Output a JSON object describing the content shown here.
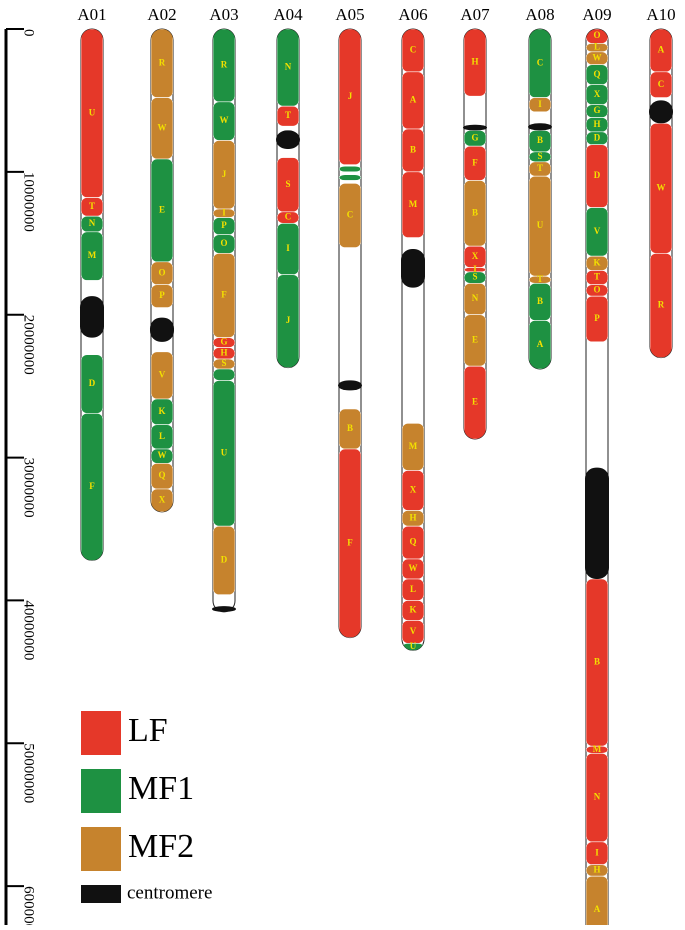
{
  "colors": {
    "LF": "#e53829",
    "MF1": "#1e9142",
    "MF2": "#c6832d",
    "centromere": "#111111",
    "label": "#f3e000",
    "gap": "#ffffff"
  },
  "chart_data": {
    "type": "chromosome_map",
    "axis": {
      "ticks": [
        0,
        10000000,
        20000000,
        30000000,
        40000000,
        50000000,
        60000000
      ],
      "tick_labels": [
        "0",
        "10000000",
        "20000000",
        "30000000",
        "40000000",
        "50000000",
        "60000000"
      ],
      "range": [
        0,
        63000000
      ]
    },
    "legend": [
      {
        "key": "LF",
        "label": "LF"
      },
      {
        "key": "MF1",
        "label": "MF1"
      },
      {
        "key": "MF2",
        "label": "MF2"
      },
      {
        "key": "centromere",
        "label": "centromere"
      }
    ],
    "chromosomes": [
      {
        "name": "A01",
        "length": 37200000,
        "blocks": [
          {
            "s": 0,
            "e": 11800000,
            "t": "LF",
            "l": "U"
          },
          {
            "s": 11800000,
            "e": 13100000,
            "t": "LF",
            "l": "T"
          },
          {
            "s": 13100000,
            "e": 14200000,
            "t": "MF1",
            "l": "N"
          },
          {
            "s": 14200000,
            "e": 17600000,
            "t": "MF1",
            "l": "M"
          },
          {
            "s": 18700000,
            "e": 21600000,
            "t": "centromere",
            "l": ""
          },
          {
            "s": 22800000,
            "e": 26900000,
            "t": "MF1",
            "l": "D"
          },
          {
            "s": 26900000,
            "e": 37200000,
            "t": "MF1",
            "l": "F"
          }
        ]
      },
      {
        "name": "A02",
        "length": 33800000,
        "blocks": [
          {
            "s": 0,
            "e": 4800000,
            "t": "MF2",
            "l": "R"
          },
          {
            "s": 4800000,
            "e": 9100000,
            "t": "MF2",
            "l": "W"
          },
          {
            "s": 9100000,
            "e": 16300000,
            "t": "MF1",
            "l": "E"
          },
          {
            "s": 16300000,
            "e": 17900000,
            "t": "MF2",
            "l": "O"
          },
          {
            "s": 17900000,
            "e": 19500000,
            "t": "MF2",
            "l": "P"
          },
          {
            "s": 20200000,
            "e": 21900000,
            "t": "centromere",
            "l": ""
          },
          {
            "s": 22600000,
            "e": 25900000,
            "t": "MF2",
            "l": "V"
          },
          {
            "s": 25900000,
            "e": 27700000,
            "t": "MF1",
            "l": "K"
          },
          {
            "s": 27700000,
            "e": 29400000,
            "t": "MF1",
            "l": "L"
          },
          {
            "s": 29400000,
            "e": 30400000,
            "t": "MF1",
            "l": "W"
          },
          {
            "s": 30400000,
            "e": 32200000,
            "t": "MF2",
            "l": "Q"
          },
          {
            "s": 32200000,
            "e": 33800000,
            "t": "MF2",
            "l": "X"
          }
        ]
      },
      {
        "name": "A03",
        "length": 40800000,
        "blocks": [
          {
            "s": 0,
            "e": 5100000,
            "t": "MF1",
            "l": "R"
          },
          {
            "s": 5100000,
            "e": 7800000,
            "t": "MF1",
            "l": "W"
          },
          {
            "s": 7800000,
            "e": 12600000,
            "t": "MF2",
            "l": "J"
          },
          {
            "s": 12600000,
            "e": 13200000,
            "t": "MF2",
            "l": "I"
          },
          {
            "s": 13200000,
            "e": 14400000,
            "t": "MF1",
            "l": "P"
          },
          {
            "s": 14400000,
            "e": 15700000,
            "t": "MF1",
            "l": "O"
          },
          {
            "s": 15700000,
            "e": 21600000,
            "t": "MF2",
            "l": "F"
          },
          {
            "s": 21600000,
            "e": 22300000,
            "t": "LF",
            "l": "G"
          },
          {
            "s": 22300000,
            "e": 23100000,
            "t": "LF",
            "l": "H"
          },
          {
            "s": 23100000,
            "e": 23800000,
            "t": "MF2",
            "l": "S"
          },
          {
            "s": 23800000,
            "e": 24600000,
            "t": "MF1",
            "l": ""
          },
          {
            "s": 24600000,
            "e": 34800000,
            "t": "MF1",
            "l": "U"
          },
          {
            "s": 34800000,
            "e": 39600000,
            "t": "MF2",
            "l": "D"
          },
          {
            "s": 40400000,
            "e": 40800000,
            "t": "centromere",
            "l": ""
          }
        ]
      },
      {
        "name": "A04",
        "length": 23700000,
        "blocks": [
          {
            "s": 0,
            "e": 5400000,
            "t": "MF1",
            "l": "N"
          },
          {
            "s": 5400000,
            "e": 6800000,
            "t": "LF",
            "l": "T"
          },
          {
            "s": 7100000,
            "e": 8400000,
            "t": "centromere",
            "l": ""
          },
          {
            "s": 9000000,
            "e": 12800000,
            "t": "LF",
            "l": "S"
          },
          {
            "s": 12800000,
            "e": 13600000,
            "t": "LF",
            "l": "C"
          },
          {
            "s": 13600000,
            "e": 17200000,
            "t": "MF1",
            "l": "I"
          },
          {
            "s": 17200000,
            "e": 23700000,
            "t": "MF1",
            "l": "J"
          }
        ]
      },
      {
        "name": "A05",
        "length": 42600000,
        "blocks": [
          {
            "s": 0,
            "e": 9500000,
            "t": "LF",
            "l": "J"
          },
          {
            "s": 9600000,
            "e": 10000000,
            "t": "MF1",
            "l": ""
          },
          {
            "s": 10200000,
            "e": 10600000,
            "t": "MF1",
            "l": ""
          },
          {
            "s": 10800000,
            "e": 15300000,
            "t": "MF2",
            "l": "C"
          },
          {
            "s": 24600000,
            "e": 25300000,
            "t": "centromere",
            "l": ""
          },
          {
            "s": 26600000,
            "e": 29400000,
            "t": "MF2",
            "l": "B"
          },
          {
            "s": 29400000,
            "e": 42600000,
            "t": "LF",
            "l": "F"
          }
        ]
      },
      {
        "name": "A06",
        "length": 43500000,
        "blocks": [
          {
            "s": 0,
            "e": 3000000,
            "t": "LF",
            "l": "C"
          },
          {
            "s": 3000000,
            "e": 7000000,
            "t": "LF",
            "l": "A"
          },
          {
            "s": 7000000,
            "e": 10000000,
            "t": "LF",
            "l": "B"
          },
          {
            "s": 10000000,
            "e": 14600000,
            "t": "LF",
            "l": "M"
          },
          {
            "s": 15400000,
            "e": 18100000,
            "t": "centromere",
            "l": ""
          },
          {
            "s": 27600000,
            "e": 30900000,
            "t": "MF2",
            "l": "M"
          },
          {
            "s": 30900000,
            "e": 33700000,
            "t": "LF",
            "l": "X"
          },
          {
            "s": 33700000,
            "e": 34800000,
            "t": "MF2",
            "l": "H"
          },
          {
            "s": 34800000,
            "e": 37100000,
            "t": "LF",
            "l": "Q"
          },
          {
            "s": 37100000,
            "e": 38500000,
            "t": "LF",
            "l": "W"
          },
          {
            "s": 38500000,
            "e": 40000000,
            "t": "LF",
            "l": "L"
          },
          {
            "s": 40000000,
            "e": 41400000,
            "t": "LF",
            "l": "K"
          },
          {
            "s": 41400000,
            "e": 43000000,
            "t": "LF",
            "l": "V"
          },
          {
            "s": 43000000,
            "e": 43500000,
            "t": "MF1",
            "l": "U"
          }
        ]
      },
      {
        "name": "A07",
        "length": 28700000,
        "blocks": [
          {
            "s": 0,
            "e": 4700000,
            "t": "LF",
            "l": "H"
          },
          {
            "s": 6700000,
            "e": 7100000,
            "t": "centromere",
            "l": ""
          },
          {
            "s": 7100000,
            "e": 8200000,
            "t": "MF1",
            "l": "G"
          },
          {
            "s": 8200000,
            "e": 10600000,
            "t": "LF",
            "l": "F"
          },
          {
            "s": 10600000,
            "e": 15200000,
            "t": "MF2",
            "l": "B"
          },
          {
            "s": 15200000,
            "e": 16700000,
            "t": "LF",
            "l": "X"
          },
          {
            "s": 16700000,
            "e": 17000000,
            "t": "LF",
            "l": "I"
          },
          {
            "s": 17000000,
            "e": 17800000,
            "t": "MF1",
            "l": "S"
          },
          {
            "s": 17800000,
            "e": 20000000,
            "t": "MF2",
            "l": "N"
          },
          {
            "s": 20000000,
            "e": 23600000,
            "t": "MF2",
            "l": "E"
          },
          {
            "s": 23600000,
            "e": 28700000,
            "t": "LF",
            "l": "E"
          }
        ]
      },
      {
        "name": "A08",
        "length": 23800000,
        "blocks": [
          {
            "s": 0,
            "e": 4800000,
            "t": "MF1",
            "l": "C"
          },
          {
            "s": 4800000,
            "e": 5800000,
            "t": "MF2",
            "l": "I"
          },
          {
            "s": 6600000,
            "e": 7100000,
            "t": "centromere",
            "l": ""
          },
          {
            "s": 7100000,
            "e": 8600000,
            "t": "MF1",
            "l": "B"
          },
          {
            "s": 8600000,
            "e": 9300000,
            "t": "MF1",
            "l": "S"
          },
          {
            "s": 9300000,
            "e": 10300000,
            "t": "MF2",
            "l": "T"
          },
          {
            "s": 10300000,
            "e": 17300000,
            "t": "MF2",
            "l": "U"
          },
          {
            "s": 17300000,
            "e": 17800000,
            "t": "MF2",
            "l": "T"
          },
          {
            "s": 17800000,
            "e": 20400000,
            "t": "MF1",
            "l": "B"
          },
          {
            "s": 20400000,
            "e": 23800000,
            "t": "MF1",
            "l": "A"
          }
        ]
      },
      {
        "name": "A09",
        "length": 64000000,
        "blocks": [
          {
            "s": 0,
            "e": 1000000,
            "t": "LF",
            "l": "O"
          },
          {
            "s": 1000000,
            "e": 1600000,
            "t": "MF2",
            "l": "L"
          },
          {
            "s": 1600000,
            "e": 2500000,
            "t": "MF2",
            "l": "W"
          },
          {
            "s": 2500000,
            "e": 3900000,
            "t": "MF1",
            "l": "Q"
          },
          {
            "s": 3900000,
            "e": 5300000,
            "t": "MF1",
            "l": "X"
          },
          {
            "s": 5300000,
            "e": 6200000,
            "t": "MF1",
            "l": "G"
          },
          {
            "s": 6200000,
            "e": 7200000,
            "t": "MF1",
            "l": "H"
          },
          {
            "s": 7200000,
            "e": 8100000,
            "t": "MF1",
            "l": "D"
          },
          {
            "s": 8100000,
            "e": 12500000,
            "t": "LF",
            "l": "D"
          },
          {
            "s": 12500000,
            "e": 15900000,
            "t": "MF1",
            "l": "V"
          },
          {
            "s": 15900000,
            "e": 16900000,
            "t": "MF2",
            "l": "K"
          },
          {
            "s": 16900000,
            "e": 17900000,
            "t": "LF",
            "l": "T"
          },
          {
            "s": 17900000,
            "e": 18700000,
            "t": "LF",
            "l": "O"
          },
          {
            "s": 18700000,
            "e": 21900000,
            "t": "LF",
            "l": "P"
          },
          {
            "s": 30700000,
            "e": 38500000,
            "t": "centromere",
            "l": ""
          },
          {
            "s": 38500000,
            "e": 50200000,
            "t": "LF",
            "l": "B"
          },
          {
            "s": 50200000,
            "e": 50700000,
            "t": "LF",
            "l": "M"
          },
          {
            "s": 50700000,
            "e": 56900000,
            "t": "LF",
            "l": "N"
          },
          {
            "s": 56900000,
            "e": 58500000,
            "t": "LF",
            "l": "I"
          },
          {
            "s": 58500000,
            "e": 59300000,
            "t": "MF2",
            "l": "H"
          },
          {
            "s": 59300000,
            "e": 64000000,
            "t": "MF2",
            "l": "A"
          }
        ]
      },
      {
        "name": "A10",
        "length": 23000000,
        "blocks": [
          {
            "s": 0,
            "e": 3000000,
            "t": "LF",
            "l": "A"
          },
          {
            "s": 3000000,
            "e": 4800000,
            "t": "LF",
            "l": "C"
          },
          {
            "s": 5000000,
            "e": 6600000,
            "t": "centromere",
            "l": ""
          },
          {
            "s": 6600000,
            "e": 15700000,
            "t": "LF",
            "l": "W"
          },
          {
            "s": 15700000,
            "e": 23000000,
            "t": "LF",
            "l": "R"
          }
        ]
      }
    ]
  }
}
